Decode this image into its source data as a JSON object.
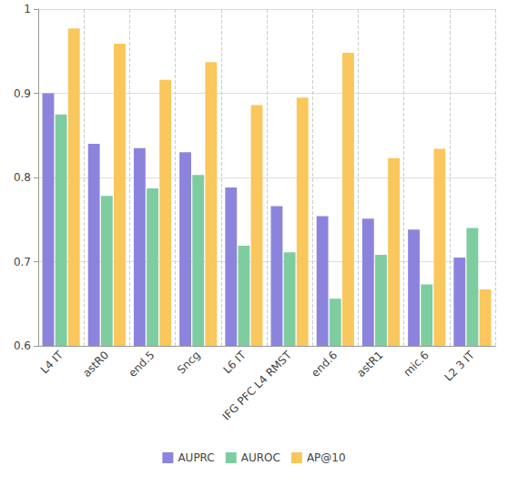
{
  "chart_data": {
    "type": "bar",
    "categories": [
      "L4 IT",
      "astR0",
      "end.5",
      "Sncg",
      "L6 IT",
      "IFG PFC L4 RMST",
      "end.6",
      "astR1",
      "mic.6",
      "L2 3 IT"
    ],
    "series": [
      {
        "name": "AUPRC",
        "color": "#8c84dc",
        "values": [
          0.9,
          0.84,
          0.835,
          0.83,
          0.788,
          0.766,
          0.754,
          0.751,
          0.738,
          0.705
        ]
      },
      {
        "name": "AUROC",
        "color": "#7ecda0",
        "values": [
          0.875,
          0.778,
          0.787,
          0.803,
          0.719,
          0.711,
          0.656,
          0.708,
          0.673,
          0.74
        ]
      },
      {
        "name": "AP@10",
        "color": "#fac75c",
        "values": [
          0.977,
          0.959,
          0.916,
          0.937,
          0.886,
          0.895,
          0.948,
          0.823,
          0.834,
          0.667
        ]
      }
    ],
    "ylim": [
      0.6,
      1
    ],
    "yticks": [
      0.6,
      0.7,
      0.8,
      0.9,
      1
    ],
    "grid": true,
    "legend": "bottom"
  }
}
